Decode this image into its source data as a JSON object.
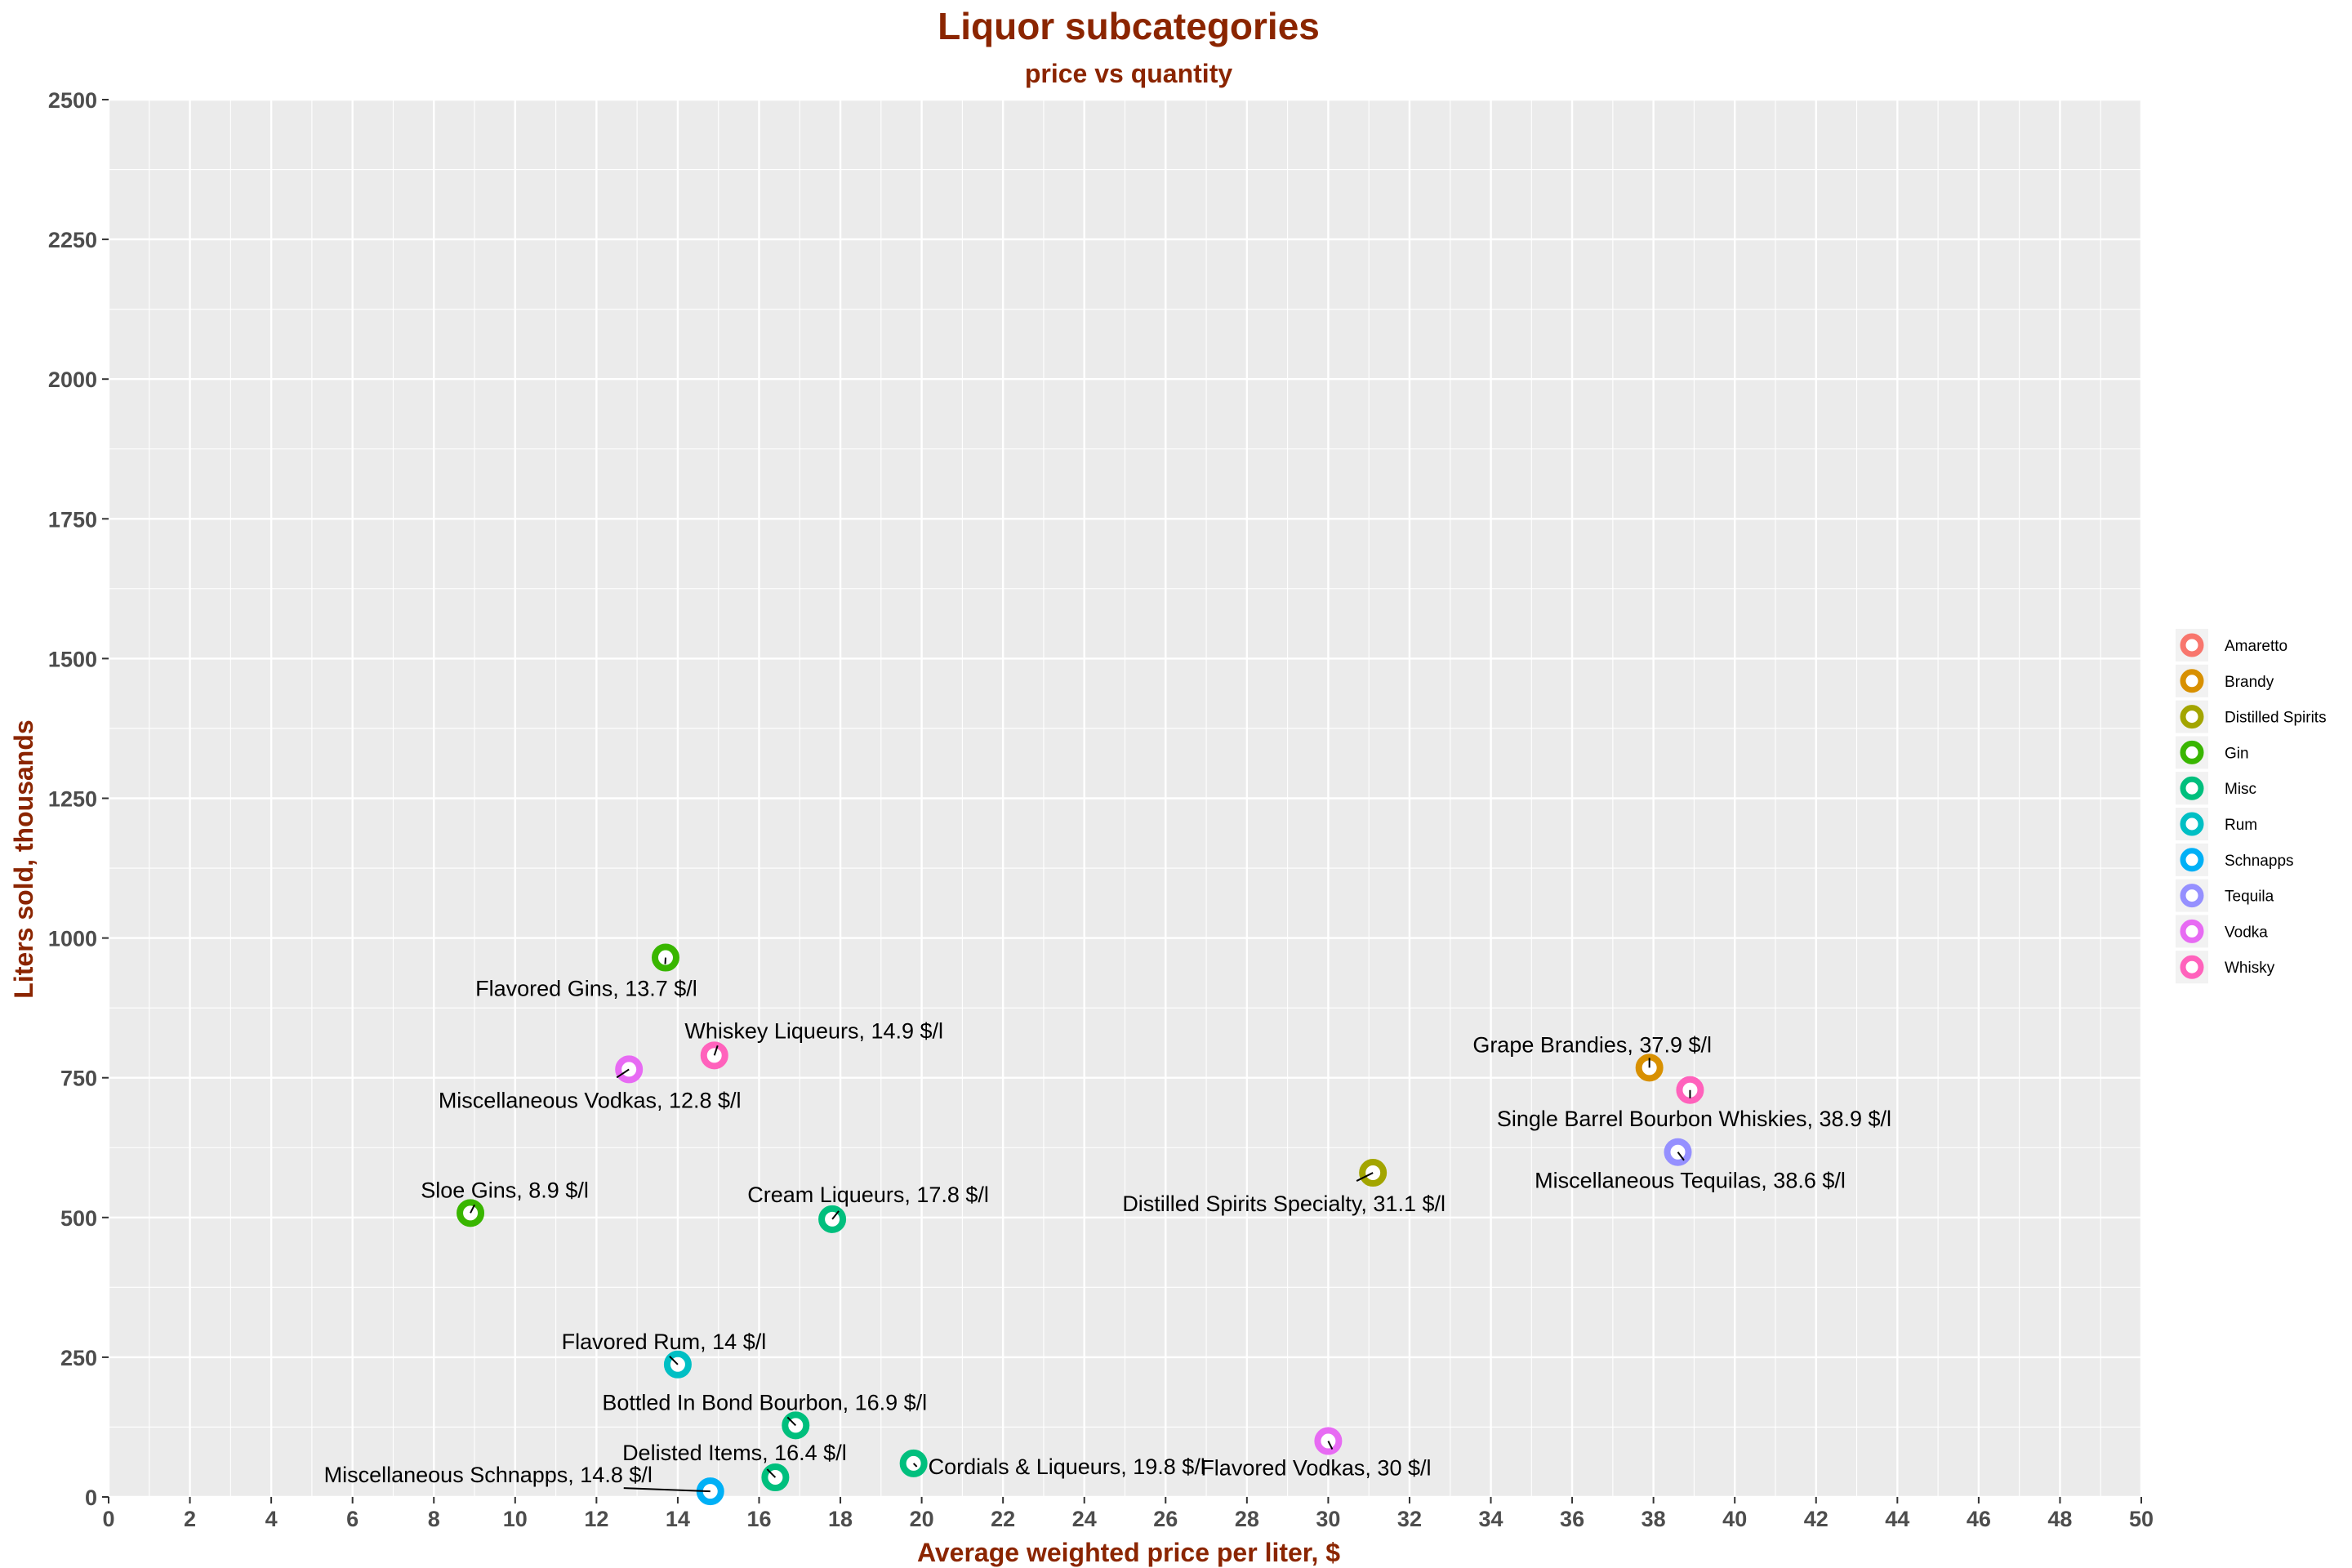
{
  "chart_data": {
    "type": "scatter",
    "title": "Liquor subcategories",
    "subtitle": "price vs quantity",
    "xlabel": "Average weighted price per liter, $",
    "ylabel": "Liters sold, thousands",
    "xlim": [
      0,
      50
    ],
    "ylim": [
      0,
      2500
    ],
    "x_ticks": [
      "0",
      "2",
      "4",
      "6",
      "8",
      "10",
      "12",
      "14",
      "16",
      "18",
      "20",
      "22",
      "24",
      "26",
      "28",
      "30",
      "32",
      "34",
      "36",
      "38",
      "40",
      "42",
      "44",
      "46",
      "48",
      "50"
    ],
    "y_ticks": [
      "0",
      "250",
      "500",
      "750",
      "1000",
      "1250",
      "1500",
      "1750",
      "2000",
      "2250",
      "2500"
    ],
    "grid": true,
    "legend_position": "right",
    "legend": [
      {
        "name": "Amaretto",
        "color": "#F8766D"
      },
      {
        "name": "Brandy",
        "color": "#D89000"
      },
      {
        "name": "Distilled Spirits",
        "color": "#A3A500"
      },
      {
        "name": "Gin",
        "color": "#39B600"
      },
      {
        "name": "Misc",
        "color": "#00BF7D"
      },
      {
        "name": "Rum",
        "color": "#00BFC4"
      },
      {
        "name": "Schnapps",
        "color": "#00B0F6"
      },
      {
        "name": "Tequila",
        "color": "#9590FF"
      },
      {
        "name": "Vodka",
        "color": "#E76BF3"
      },
      {
        "name": "Whisky",
        "color": "#FF62BC"
      }
    ],
    "points": [
      {
        "x": 13.7,
        "y": 965,
        "group": "Gin",
        "label": "Flavored Gins, 13.7 $/l"
      },
      {
        "x": 14.9,
        "y": 790,
        "group": "Whisky",
        "label": "Whiskey Liqueurs, 14.9 $/l"
      },
      {
        "x": 12.8,
        "y": 765,
        "group": "Vodka",
        "label": "Miscellaneous Vodkas, 12.8 $/l"
      },
      {
        "x": 8.9,
        "y": 508,
        "group": "Gin",
        "label": "Sloe Gins, 8.9 $/l"
      },
      {
        "x": 17.8,
        "y": 497,
        "group": "Misc",
        "label": "Cream Liqueurs, 17.8 $/l"
      },
      {
        "x": 14.0,
        "y": 237,
        "group": "Rum",
        "label": "Flavored Rum, 14 $/l"
      },
      {
        "x": 16.9,
        "y": 128,
        "group": "Misc",
        "label": "Bottled In Bond Bourbon, 16.9 $/l"
      },
      {
        "x": 16.4,
        "y": 35,
        "group": "Misc",
        "label": "Delisted Items, 16.4 $/l"
      },
      {
        "x": 19.8,
        "y": 60,
        "group": "Misc",
        "label": "Cordials & Liqueurs, 19.8 $/l"
      },
      {
        "x": 14.8,
        "y": 10,
        "group": "Schnapps",
        "label": "Miscellaneous Schnapps, 14.8 $/l"
      },
      {
        "x": 30.0,
        "y": 100,
        "group": "Vodka",
        "label": "Flavored Vodkas, 30 $/l"
      },
      {
        "x": 31.1,
        "y": 580,
        "group": "Distilled Spirits",
        "label": "Distilled Spirits Specialty, 31.1 $/l"
      },
      {
        "x": 37.9,
        "y": 768,
        "group": "Brandy",
        "label": "Grape Brandies, 37.9 $/l"
      },
      {
        "x": 38.9,
        "y": 728,
        "group": "Whisky",
        "label": "Single Barrel Bourbon Whiskies, 38.9 $/l"
      },
      {
        "x": 38.6,
        "y": 617,
        "group": "Tequila",
        "label": "Miscellaneous Tequilas, 38.6 $/l"
      }
    ]
  }
}
